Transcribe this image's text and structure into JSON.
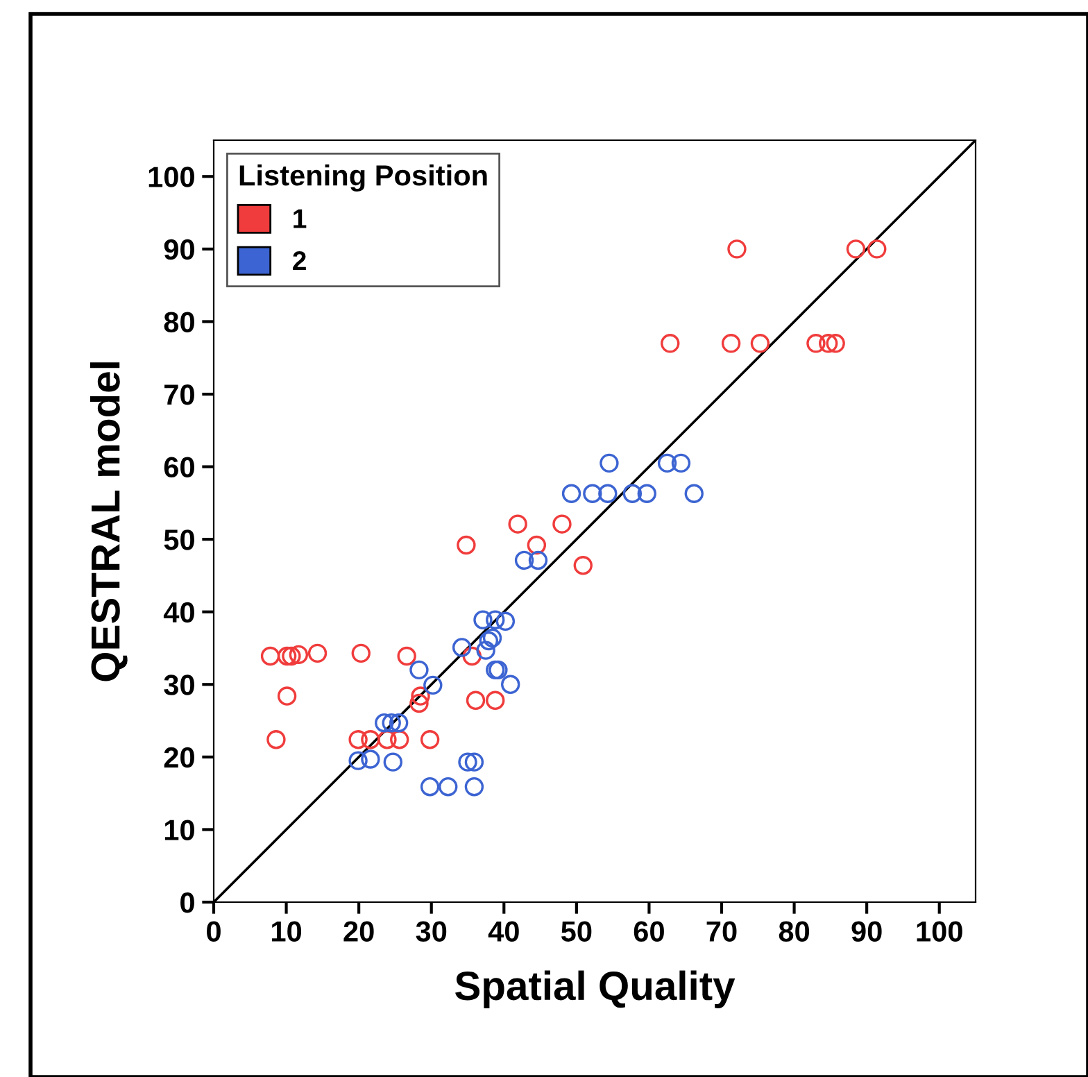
{
  "chart_data": {
    "type": "scatter",
    "xlabel": "Spatial Quality",
    "ylabel": "QESTRAL model",
    "legend_title": "Listening Position",
    "xlim": [
      0,
      105
    ],
    "ylim": [
      0,
      105
    ],
    "xticks": [
      0,
      10,
      20,
      30,
      40,
      50,
      60,
      70,
      80,
      90,
      100
    ],
    "yticks": [
      0,
      10,
      20,
      30,
      40,
      50,
      60,
      70,
      80,
      90,
      100
    ],
    "grid": false,
    "legend": "top left",
    "marker": "circle",
    "series": [
      {
        "name": "1",
        "color": "#f03c3c",
        "x": [
          72.1,
          88.5,
          91.4,
          62.9,
          71.3,
          75.3,
          83.0,
          84.7,
          85.7,
          41.9,
          48.0,
          44.5,
          34.8,
          50.9,
          7.8,
          10.1,
          10.7,
          11.7,
          14.3,
          20.3,
          26.6,
          35.6,
          10.1,
          28.5,
          28.3,
          36.1,
          38.8,
          8.6,
          19.9,
          21.6,
          23.9,
          25.6,
          29.8
        ],
        "values": [
          90,
          90,
          90,
          77,
          77,
          77,
          77,
          77,
          77,
          52.1,
          52.1,
          49.2,
          49.2,
          46.4,
          33.9,
          33.9,
          33.9,
          34.1,
          34.3,
          34.3,
          33.9,
          33.9,
          28.4,
          28.4,
          27.4,
          27.8,
          27.8,
          22.4,
          22.4,
          22.4,
          22.4,
          22.4,
          22.4
        ]
      },
      {
        "name": "2",
        "color": "#3c64d2",
        "x": [
          49.3,
          52.2,
          54.3,
          57.7,
          59.7,
          66.2,
          54.5,
          62.5,
          64.4,
          42.8,
          44.7,
          37.1,
          38.8,
          40.2,
          37.9,
          38.4,
          34.2,
          37.5,
          38.8,
          39.2,
          40.9,
          28.3,
          30.2,
          23.5,
          24.5,
          25.5,
          19.9,
          21.6,
          24.7,
          35.0,
          35.9,
          29.8,
          32.3,
          35.9
        ],
        "values": [
          56.3,
          56.3,
          56.3,
          56.3,
          56.3,
          56.3,
          60.5,
          60.5,
          60.5,
          47.1,
          47.1,
          38.9,
          38.9,
          38.7,
          36.0,
          36.4,
          35.1,
          34.7,
          32.0,
          32.0,
          30.0,
          32.0,
          29.9,
          24.7,
          24.7,
          24.7,
          19.5,
          19.7,
          19.3,
          19.3,
          19.3,
          15.9,
          15.9,
          15.9
        ]
      },
      {
        "type": "line",
        "color": "#000000",
        "marker": "none",
        "x": [
          0,
          105
        ],
        "values": [
          0,
          105
        ]
      }
    ]
  }
}
